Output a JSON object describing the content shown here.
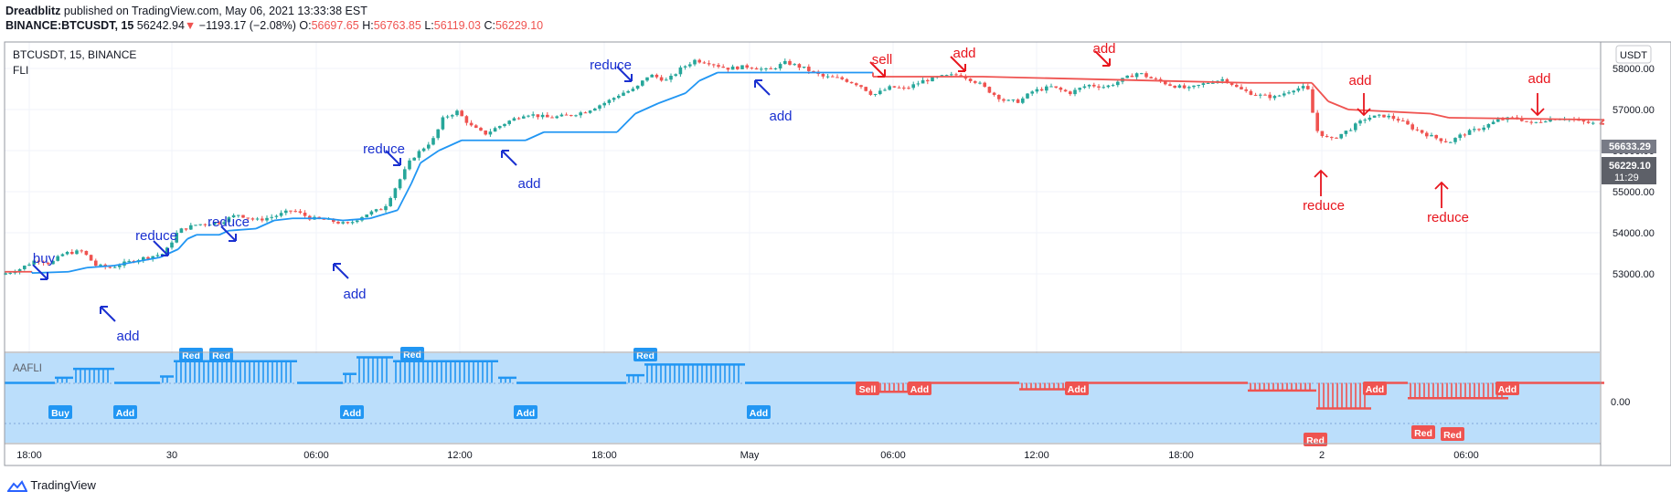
{
  "header": {
    "author": "Dreadblitz",
    "published": "published on TradingView.com, May 06, 2021 13:33:38 EST",
    "symbol": "BINANCE:BTCUSDT, 15",
    "price": "56242.94",
    "arrow": "▼",
    "change": "−1193.17 (−2.08%)",
    "o_label": "O:",
    "o_value": "56697.65",
    "h_label": "H:",
    "h_value": "56763.85",
    "l_label": "L:",
    "l_value": "56119.03",
    "c_label": "C:",
    "c_value": "56229.10"
  },
  "legend": {
    "symbol": "BTCUSDT, 15, BINANCE",
    "indicator": "FLI"
  },
  "indicator": {
    "name": "AAFLI"
  },
  "currency_button": "USDT",
  "price_tags": {
    "upper": "56633.29",
    "current": "56229.10",
    "countdown": "11:29"
  },
  "footer": {
    "brand": "TradingView"
  },
  "colors": {
    "bull": "#26a69a",
    "bear": "#ef5350",
    "blue": "#2196f3",
    "annot_blue": "#1a30d0",
    "annot_red": "#e8161e",
    "panel_bg": "#bbdefb"
  },
  "chart_data": {
    "type": "candlestick",
    "price_axis": {
      "ticks": [
        "58000.00",
        "57000.00",
        "56000.00",
        "55000.00",
        "54000.00",
        "53000.00"
      ],
      "range": [
        52500,
        58700
      ]
    },
    "indicator_axis": {
      "ticks": [
        "0.00"
      ]
    },
    "time_axis": {
      "ticks": [
        "18:00",
        "30",
        "06:00",
        "12:00",
        "18:00",
        "May",
        "06:00",
        "12:00",
        "18:00",
        "2",
        "06:00"
      ]
    },
    "fli_line": [
      {
        "x": 0,
        "y": 53050,
        "c": "bear"
      },
      {
        "x": 30,
        "y": 53050,
        "c": "bear"
      },
      {
        "x": 30,
        "y": 53020,
        "c": "blue"
      },
      {
        "x": 70,
        "y": 53050
      },
      {
        "x": 90,
        "y": 53150
      },
      {
        "x": 120,
        "y": 53200
      },
      {
        "x": 170,
        "y": 53400
      },
      {
        "x": 190,
        "y": 53600
      },
      {
        "x": 200,
        "y": 53850
      },
      {
        "x": 210,
        "y": 53950
      },
      {
        "x": 235,
        "y": 53950
      },
      {
        "x": 245,
        "y": 54050
      },
      {
        "x": 275,
        "y": 54100
      },
      {
        "x": 295,
        "y": 54300
      },
      {
        "x": 315,
        "y": 54350
      },
      {
        "x": 350,
        "y": 54350
      },
      {
        "x": 370,
        "y": 54300
      },
      {
        "x": 400,
        "y": 54350
      },
      {
        "x": 430,
        "y": 54550
      },
      {
        "x": 445,
        "y": 55200
      },
      {
        "x": 455,
        "y": 55700
      },
      {
        "x": 475,
        "y": 56000
      },
      {
        "x": 500,
        "y": 56250
      },
      {
        "x": 570,
        "y": 56250
      },
      {
        "x": 590,
        "y": 56450
      },
      {
        "x": 670,
        "y": 56450
      },
      {
        "x": 690,
        "y": 56900
      },
      {
        "x": 715,
        "y": 57150
      },
      {
        "x": 745,
        "y": 57400
      },
      {
        "x": 760,
        "y": 57700
      },
      {
        "x": 780,
        "y": 57900
      },
      {
        "x": 950,
        "y": 57900
      },
      {
        "x": 950,
        "y": 57800,
        "c": "bear"
      },
      {
        "x": 1020,
        "y": 57800
      },
      {
        "x": 1070,
        "y": 57800
      },
      {
        "x": 1360,
        "y": 57650
      },
      {
        "x": 1430,
        "y": 57650
      },
      {
        "x": 1448,
        "y": 57200
      },
      {
        "x": 1470,
        "y": 57000
      },
      {
        "x": 1560,
        "y": 56900
      },
      {
        "x": 1580,
        "y": 56800
      },
      {
        "x": 1750,
        "y": 56750
      },
      {
        "x": 1745,
        "y": 56650
      },
      {
        "x": 1750,
        "y": 56650
      }
    ],
    "price_anchors": [
      [
        0,
        52980
      ],
      [
        20,
        53100
      ],
      [
        40,
        53350
      ],
      [
        55,
        53250
      ],
      [
        70,
        53500
      ],
      [
        90,
        53550
      ],
      [
        105,
        53200
      ],
      [
        120,
        53150
      ],
      [
        150,
        53350
      ],
      [
        180,
        53500
      ],
      [
        195,
        54050
      ],
      [
        215,
        54200
      ],
      [
        240,
        54250
      ],
      [
        260,
        54450
      ],
      [
        280,
        54300
      ],
      [
        300,
        54400
      ],
      [
        320,
        54550
      ],
      [
        340,
        54350
      ],
      [
        360,
        54300
      ],
      [
        380,
        54200
      ],
      [
        400,
        54450
      ],
      [
        420,
        54600
      ],
      [
        440,
        55400
      ],
      [
        450,
        55800
      ],
      [
        465,
        56100
      ],
      [
        475,
        56300
      ],
      [
        485,
        56800
      ],
      [
        500,
        56950
      ],
      [
        515,
        56600
      ],
      [
        530,
        56400
      ],
      [
        555,
        56700
      ],
      [
        575,
        56900
      ],
      [
        600,
        56800
      ],
      [
        620,
        56850
      ],
      [
        640,
        56950
      ],
      [
        665,
        57200
      ],
      [
        680,
        57400
      ],
      [
        695,
        57500
      ],
      [
        710,
        57850
      ],
      [
        730,
        57700
      ],
      [
        745,
        58000
      ],
      [
        760,
        58200
      ],
      [
        775,
        58150
      ],
      [
        795,
        58000
      ],
      [
        820,
        58050
      ],
      [
        840,
        57950
      ],
      [
        860,
        58150
      ],
      [
        880,
        58000
      ],
      [
        900,
        57800
      ],
      [
        920,
        57750
      ],
      [
        940,
        57600
      ],
      [
        955,
        57350
      ],
      [
        975,
        57550
      ],
      [
        990,
        57500
      ],
      [
        1010,
        57700
      ],
      [
        1030,
        57800
      ],
      [
        1050,
        57850
      ],
      [
        1070,
        57650
      ],
      [
        1085,
        57400
      ],
      [
        1100,
        57200
      ],
      [
        1115,
        57200
      ],
      [
        1130,
        57450
      ],
      [
        1150,
        57550
      ],
      [
        1170,
        57400
      ],
      [
        1190,
        57600
      ],
      [
        1210,
        57550
      ],
      [
        1225,
        57700
      ],
      [
        1245,
        57900
      ],
      [
        1260,
        57750
      ],
      [
        1280,
        57600
      ],
      [
        1300,
        57500
      ],
      [
        1320,
        57650
      ],
      [
        1340,
        57750
      ],
      [
        1355,
        57500
      ],
      [
        1375,
        57350
      ],
      [
        1395,
        57300
      ],
      [
        1415,
        57500
      ],
      [
        1430,
        57550
      ],
      [
        1440,
        56500
      ],
      [
        1455,
        56250
      ],
      [
        1475,
        56500
      ],
      [
        1495,
        56800
      ],
      [
        1515,
        56850
      ],
      [
        1530,
        56750
      ],
      [
        1545,
        56550
      ],
      [
        1565,
        56350
      ],
      [
        1585,
        56200
      ],
      [
        1600,
        56400
      ],
      [
        1620,
        56550
      ],
      [
        1640,
        56750
      ],
      [
        1660,
        56800
      ],
      [
        1675,
        56650
      ],
      [
        1690,
        56750
      ],
      [
        1710,
        56800
      ],
      [
        1730,
        56700
      ],
      [
        1745,
        56650
      ],
      [
        1750,
        56550
      ]
    ],
    "annotations": [
      {
        "text": "buy",
        "tx": 48,
        "ty": 288,
        "arrow": "diag-down",
        "ax": 44,
        "ay": 298,
        "ac": "blue"
      },
      {
        "text": "add",
        "tx": 140,
        "ty": 373,
        "arrow": "diag-up",
        "ax": 118,
        "ay": 344,
        "ac": "blue"
      },
      {
        "text": "reduce",
        "tx": 171,
        "ty": 263,
        "arrow": "diag-down",
        "ax": 176,
        "ay": 272,
        "ac": "blue"
      },
      {
        "text": "reduce",
        "tx": 250,
        "ty": 248,
        "arrow": "diag-down",
        "ax": 250,
        "ay": 256,
        "ac": "blue"
      },
      {
        "text": "add",
        "tx": 388,
        "ty": 327,
        "arrow": "diag-up",
        "ax": 373,
        "ay": 297,
        "ac": "blue"
      },
      {
        "text": "reduce",
        "tx": 420,
        "ty": 168,
        "arrow": "diag-down",
        "ax": 430,
        "ay": 173,
        "ac": "blue"
      },
      {
        "text": "add",
        "tx": 579,
        "ty": 206,
        "arrow": "diag-up",
        "ax": 557,
        "ay": 173,
        "ac": "blue"
      },
      {
        "text": "reduce",
        "tx": 668,
        "ty": 76,
        "arrow": "diag-down",
        "ax": 683,
        "ay": 81,
        "ac": "blue"
      },
      {
        "text": "add",
        "tx": 854,
        "ty": 132,
        "arrow": "diag-up",
        "ax": 834,
        "ay": 96,
        "ac": "blue"
      },
      {
        "text": "sell",
        "tx": 965,
        "ty": 70,
        "arrow": "diag-down",
        "ax": 960,
        "ay": 76,
        "ac": "red"
      },
      {
        "text": "add",
        "tx": 1055,
        "ty": 63,
        "arrow": "diag-down",
        "ax": 1048,
        "ay": 70,
        "ac": "red"
      },
      {
        "text": "add",
        "tx": 1208,
        "ty": 58,
        "arrow": "diag-down",
        "ax": 1206,
        "ay": 64,
        "ac": "red"
      },
      {
        "text": "add",
        "tx": 1488,
        "ty": 93,
        "arrow": "down",
        "ax": 1492,
        "ay": 102,
        "ac": "red"
      },
      {
        "text": "add",
        "tx": 1684,
        "ty": 91,
        "arrow": "down",
        "ax": 1682,
        "ay": 102,
        "ac": "red"
      },
      {
        "text": "reduce",
        "tx": 1448,
        "ty": 230,
        "arrow": "up",
        "ax": 1445,
        "ay": 187,
        "ac": "red"
      },
      {
        "text": "reduce",
        "tx": 1584,
        "ty": 243,
        "arrow": "up",
        "ax": 1577,
        "ay": 200,
        "ac": "red"
      }
    ],
    "osc_hump": [
      {
        "x0": 0,
        "x1": 55,
        "level": 0
      },
      {
        "x0": 55,
        "x1": 75,
        "level": 0.2
      },
      {
        "x0": 75,
        "x1": 120,
        "level": 0.55
      },
      {
        "x0": 120,
        "x1": 170,
        "level": 0
      },
      {
        "x0": 170,
        "x1": 185,
        "level": 0.25
      },
      {
        "x0": 185,
        "x1": 320,
        "level": 0.85
      },
      {
        "x0": 320,
        "x1": 370,
        "level": 0
      },
      {
        "x0": 370,
        "x1": 385,
        "level": 0.35
      },
      {
        "x0": 385,
        "x1": 425,
        "level": 1
      },
      {
        "x0": 425,
        "x1": 540,
        "level": 0.85
      },
      {
        "x0": 540,
        "x1": 560,
        "level": 0.2
      },
      {
        "x0": 560,
        "x1": 680,
        "level": 0
      },
      {
        "x0": 680,
        "x1": 700,
        "level": 0.3
      },
      {
        "x0": 700,
        "x1": 810,
        "level": 0.72
      },
      {
        "x0": 810,
        "x1": 940,
        "level": 0
      },
      {
        "x0": 940,
        "x1": 1000,
        "level": -0.35
      },
      {
        "x0": 1000,
        "x1": 1110,
        "level": 0
      },
      {
        "x0": 1110,
        "x1": 1165,
        "level": -0.25
      },
      {
        "x0": 1165,
        "x1": 1360,
        "level": 0
      },
      {
        "x0": 1360,
        "x1": 1435,
        "level": -0.3
      },
      {
        "x0": 1435,
        "x1": 1495,
        "level": -1
      },
      {
        "x0": 1495,
        "x1": 1535,
        "level": 0
      },
      {
        "x0": 1535,
        "x1": 1645,
        "level": -0.6
      },
      {
        "x0": 1645,
        "x1": 1750,
        "level": 0
      }
    ],
    "osc_labels": [
      {
        "text": "Buy",
        "x": 66,
        "y": 452,
        "c": "blue"
      },
      {
        "text": "Add",
        "x": 137,
        "y": 452,
        "c": "blue"
      },
      {
        "text": "Red",
        "x": 209,
        "y": 389,
        "c": "blue"
      },
      {
        "text": "Red",
        "x": 242,
        "y": 389,
        "c": "blue"
      },
      {
        "text": "Add",
        "x": 385,
        "y": 452,
        "c": "blue"
      },
      {
        "text": "Red",
        "x": 451,
        "y": 388,
        "c": "blue"
      },
      {
        "text": "Add",
        "x": 575,
        "y": 452,
        "c": "blue"
      },
      {
        "text": "Red",
        "x": 706,
        "y": 389,
        "c": "blue"
      },
      {
        "text": "Add",
        "x": 830,
        "y": 452,
        "c": "blue"
      },
      {
        "text": "Sell",
        "x": 949,
        "y": 426,
        "c": "red"
      },
      {
        "text": "Add",
        "x": 1006,
        "y": 426,
        "c": "red"
      },
      {
        "text": "Add",
        "x": 1178,
        "y": 426,
        "c": "red"
      },
      {
        "text": "Red",
        "x": 1439,
        "y": 482,
        "c": "red"
      },
      {
        "text": "Add",
        "x": 1504,
        "y": 426,
        "c": "red"
      },
      {
        "text": "Red",
        "x": 1557,
        "y": 474,
        "c": "red"
      },
      {
        "text": "Red",
        "x": 1589,
        "y": 476,
        "c": "red"
      },
      {
        "text": "Add",
        "x": 1649,
        "y": 426,
        "c": "red"
      }
    ]
  }
}
